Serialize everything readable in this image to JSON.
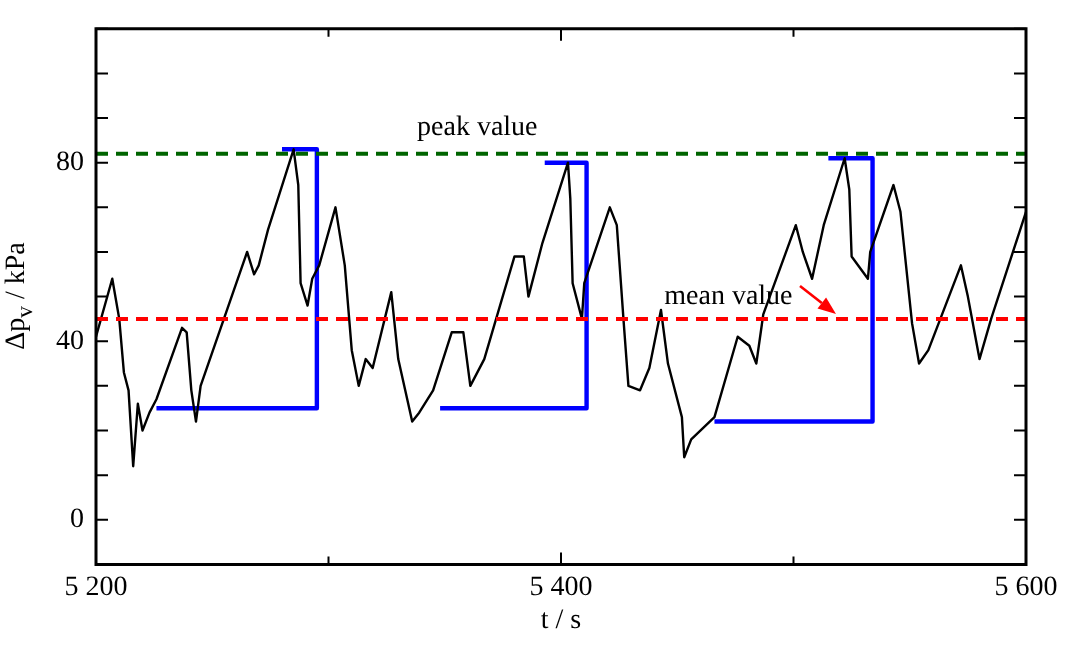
{
  "chart_data": {
    "type": "line",
    "xlabel": "t / s",
    "ylabel": "Δp$_{v}$ / kPa",
    "xlim": [
      5200,
      5600
    ],
    "ylim": [
      -10,
      110
    ],
    "xticks": [
      {
        "value": 5200,
        "label": "5 200"
      },
      {
        "value": 5300,
        "label": null
      },
      {
        "value": 5400,
        "label": "5 400"
      },
      {
        "value": 5500,
        "label": null
      },
      {
        "value": 5600,
        "label": "5 600"
      }
    ],
    "yticks": [
      {
        "value": -10,
        "label": null
      },
      0,
      {
        "value": 10,
        "label": null
      },
      {
        "value": 20,
        "label": null
      },
      {
        "value": 30,
        "label": null
      },
      40,
      {
        "value": 50,
        "label": null
      },
      {
        "value": 60,
        "label": null
      },
      {
        "value": 70,
        "label": null
      },
      80,
      {
        "value": 90,
        "label": null
      },
      {
        "value": 100,
        "label": null
      },
      {
        "value": 110,
        "label": null
      }
    ],
    "grid": false,
    "legend": false,
    "series": [
      {
        "color": "#000000",
        "x": [
          5200,
          5207,
          5210,
          5212,
          5214,
          5216,
          5218,
          5220,
          5223,
          5226,
          5237,
          5239,
          5241,
          5243,
          5245,
          5265,
          5268,
          5270,
          5274,
          5285,
          5287,
          5288,
          5291,
          5293,
          5296,
          5303,
          5307,
          5310,
          5313,
          5316,
          5319,
          5327,
          5330,
          5333,
          5336,
          5339,
          5345,
          5353,
          5358,
          5361,
          5367,
          5380,
          5384,
          5386,
          5392,
          5403,
          5404,
          5405,
          5409,
          5410,
          5421,
          5424,
          5427,
          5429,
          5434,
          5438,
          5443,
          5446,
          5452,
          5453,
          5456,
          5466,
          5476,
          5481,
          5484,
          5487,
          5501,
          5504,
          5508,
          5513,
          5522,
          5524,
          5525,
          5532,
          5533,
          5543,
          5546,
          5551,
          5554,
          5558,
          5572,
          5575,
          5580,
          5585,
          5600
        ],
        "values": [
          41,
          54,
          45,
          33,
          29,
          12,
          26,
          20,
          24,
          27,
          43,
          42,
          29,
          22,
          30,
          60,
          55,
          57,
          65,
          83,
          75,
          53,
          48,
          54,
          57,
          70,
          57,
          38,
          30,
          36,
          34,
          51,
          36,
          29,
          22,
          24,
          29,
          42,
          42,
          30,
          36,
          59,
          59,
          50,
          62,
          80,
          72,
          53,
          45,
          53,
          70,
          66,
          44,
          30,
          29,
          34,
          47,
          35,
          23,
          14,
          18,
          23,
          41,
          39,
          35,
          46,
          66,
          60,
          54,
          66,
          81,
          74,
          59,
          54,
          60,
          75,
          69,
          44,
          35,
          38,
          57,
          50,
          36,
          45,
          69
        ]
      },
      {
        "color": "#0000ff",
        "x": [
          5226,
          5295,
          5295,
          5280
        ],
        "values": [
          25,
          25,
          83,
          83
        ]
      },
      {
        "color": "#0000ff",
        "x": [
          5348,
          5411,
          5411,
          5393
        ],
        "values": [
          25,
          25,
          80,
          80
        ]
      },
      {
        "color": "#0000ff",
        "x": [
          5466,
          5534,
          5534,
          5515
        ],
        "values": [
          22,
          22,
          81,
          81
        ]
      }
    ],
    "ref_lines": [
      {
        "axis": "y",
        "value": 82,
        "label": "peak value",
        "color": "#006400",
        "line_style": "dashed"
      },
      {
        "axis": "y",
        "value": 45,
        "label": "mean value",
        "color": "#ff0000",
        "line_style": "dashed"
      }
    ]
  }
}
